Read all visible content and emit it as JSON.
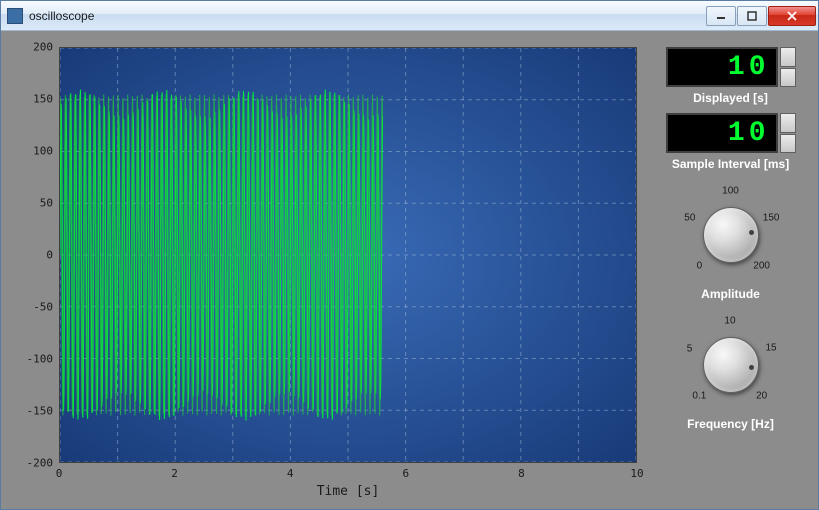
{
  "window": {
    "title": "oscilloscope"
  },
  "chart": {
    "type": "line",
    "xlabel": "Time [s]",
    "xlim": [
      0,
      10
    ],
    "xticks": [
      0,
      2,
      4,
      6,
      8,
      10
    ],
    "ylim": [
      -200,
      200
    ],
    "yticks": [
      -200,
      -150,
      -100,
      -50,
      0,
      50,
      100,
      150,
      200
    ],
    "x_minor_step": 1,
    "y_minor_step": 50,
    "background_gradient": [
      "#3a6cb8",
      "#183a78"
    ],
    "grid_color": "#a0b8d8",
    "grid_dash": "4 4",
    "trace_color": "#00ee40",
    "trace_color_alt": "#20c040",
    "trace_width": 1,
    "data_extent_x": 5.6,
    "amplitude": 160,
    "axis_text_color": "#1a1a1a",
    "label_font": "monospace",
    "label_fontsize": 13,
    "tick_fontsize": 11
  },
  "controls": {
    "displayed": {
      "value": 10,
      "label": "Displayed [s]",
      "lcd_color": "#00ff30",
      "lcd_bg": "#000000"
    },
    "sample_interval": {
      "value": 10,
      "label": "Sample Interval [ms]",
      "lcd_color": "#00ff30",
      "lcd_bg": "#000000"
    },
    "amplitude": {
      "label": "Amplitude",
      "min": 0,
      "max": 200,
      "value": 160,
      "ticks": [
        {
          "v": 0,
          "label": "0"
        },
        {
          "v": 50,
          "label": "50"
        },
        {
          "v": 100,
          "label": "100"
        },
        {
          "v": 150,
          "label": "150"
        },
        {
          "v": 200,
          "label": "200"
        }
      ],
      "start_angle": -225,
      "end_angle": 45
    },
    "frequency": {
      "label": "Frequency [Hz]",
      "min": 0.1,
      "max": 20,
      "value": 17,
      "ticks": [
        {
          "v": 0.1,
          "label": "0.1"
        },
        {
          "v": 5,
          "label": "5"
        },
        {
          "v": 10,
          "label": "10"
        },
        {
          "v": 15,
          "label": "15"
        },
        {
          "v": 20,
          "label": "20"
        }
      ],
      "start_angle": -225,
      "end_angle": 45
    }
  },
  "colors": {
    "panel_bg": "#8c8c8c",
    "label_text": "#ffffff"
  }
}
